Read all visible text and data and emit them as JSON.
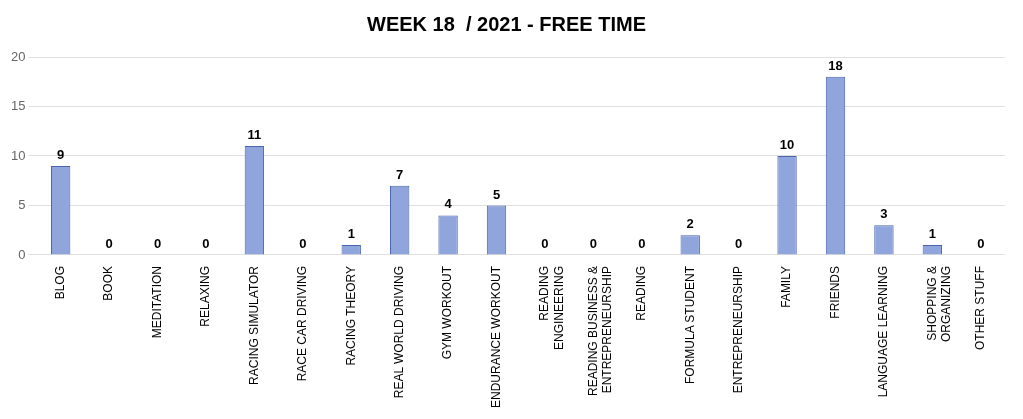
{
  "chart_data": {
    "type": "bar",
    "title": "WEEK 18  / 2021 - FREE TIME",
    "categories": [
      "BLOG",
      "BOOK",
      "MEDITATION",
      "RELAXING",
      "RACING SIMULATOR",
      "RACE CAR DRIVING",
      "RACING THEORY",
      "REAL WORLD DRIVING",
      "GYM WORKOUT",
      "ENDURANCE WORKOUT",
      "READING ENGINEERING",
      "READING BUSINESS & ENTREPRENEURSHIP",
      "READING",
      "FORMULA STUDENT",
      "ENTREPRENEURSHIP",
      "FAMILY",
      "FRIENDS",
      "LANGUAGE LEARNING",
      "SHOPPING & ORGANIZING",
      "OTHER STUFF"
    ],
    "values": [
      9,
      0,
      0,
      0,
      11,
      0,
      1,
      7,
      4,
      5,
      0,
      0,
      0,
      2,
      0,
      10,
      18,
      3,
      1,
      0
    ],
    "color": "#8fa5dc",
    "ylim": [
      0,
      20
    ],
    "yticks": [
      0,
      5,
      10,
      15,
      20
    ],
    "grid": "y",
    "data_labels": true,
    "legend": false
  }
}
